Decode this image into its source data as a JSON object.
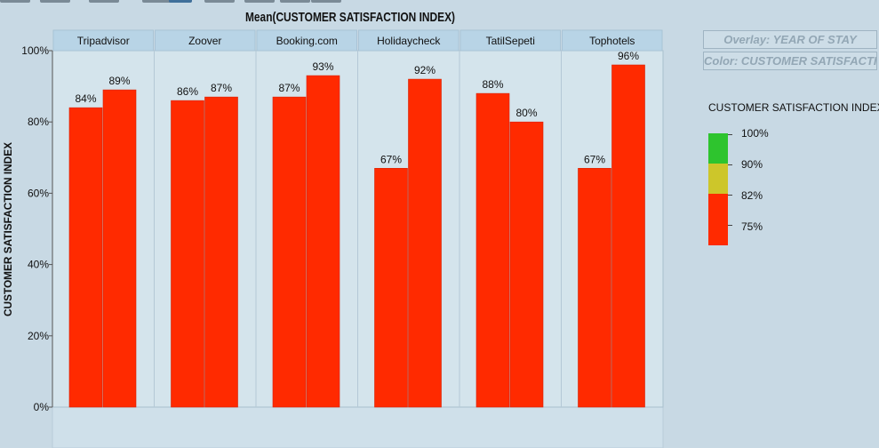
{
  "toolbar": {
    "buttons": [
      "toolbar-button-1",
      "toolbar-button-2",
      "toolbar-button-3",
      "toolbar-button-4",
      "toolbar-button-5",
      "toolbar-button-6",
      "toolbar-button-7",
      "toolbar-button-8",
      "toolbar-button-9"
    ]
  },
  "chart_data": {
    "type": "bar",
    "title": "Mean(CUSTOMER SATISFACTION INDEX)",
    "ylabel": "CUSTOMER SATISFACTION INDEX",
    "xlabel": "",
    "ylim": [
      0,
      100
    ],
    "y_ticks": [
      "0%",
      "20%",
      "40%",
      "60%",
      "80%",
      "100%"
    ],
    "y_tick_values": [
      0,
      20,
      40,
      60,
      80,
      100
    ],
    "grid": false,
    "panels": [
      {
        "name": "Tripadvisor",
        "values": [
          84,
          89
        ],
        "labels": [
          "84%",
          "89%"
        ]
      },
      {
        "name": "Zoover",
        "values": [
          86,
          87
        ],
        "labels": [
          "86%",
          "87%"
        ]
      },
      {
        "name": "Booking.com",
        "values": [
          87,
          93
        ],
        "labels": [
          "87%",
          "93%"
        ]
      },
      {
        "name": "Holidaycheck",
        "values": [
          67,
          92
        ],
        "labels": [
          "67%",
          "92%"
        ]
      },
      {
        "name": "TatilSepeti",
        "values": [
          88,
          80
        ],
        "labels": [
          "88%",
          "80%"
        ]
      },
      {
        "name": "Tophotels",
        "values": [
          67,
          96
        ],
        "labels": [
          "67%",
          "96%"
        ]
      }
    ],
    "bar_color": "#ff2a00",
    "legend_placement": "right"
  },
  "legend": {
    "overlay_label": "Overlay: YEAR OF STAY",
    "color_label": "Color: CUSTOMER SATISFACTION",
    "title": "CUSTOMER SATISFACTION INDEX",
    "scale": [
      {
        "label": "100%",
        "color": "#2ec42e"
      },
      {
        "label": "90%",
        "color": "#cdc62a"
      },
      {
        "label": "82%",
        "color": "#ff2a00"
      },
      {
        "label": "75%",
        "color": "#ff2a00"
      }
    ]
  },
  "colors": {
    "background": "#c8d9e4",
    "plot_background": "#d4e4ec",
    "panel_header": "#b8d4e6",
    "bar": "#ff2a00"
  }
}
